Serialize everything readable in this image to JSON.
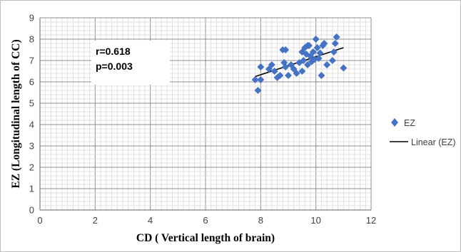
{
  "chart_data": {
    "type": "scatter",
    "xlabel": "CD ( Vertical length of brain)",
    "ylabel": "EZ (Longitudinal length of CC)",
    "xlim": [
      0,
      12
    ],
    "ylim": [
      0,
      9
    ],
    "x_ticks": [
      "0",
      "2",
      "4",
      "6",
      "8",
      "10",
      "12"
    ],
    "y_ticks": [
      "0",
      "1",
      "2",
      "3",
      "4",
      "5",
      "6",
      "7",
      "8",
      "9"
    ],
    "grid": true,
    "legend_position": "right",
    "annotation": {
      "line1": "r=0.618",
      "line2": "p=0.003"
    },
    "series": [
      {
        "name": "EZ",
        "marker": "diamond",
        "color": "#4472c4",
        "points": [
          [
            7.8,
            6.1
          ],
          [
            7.9,
            5.6
          ],
          [
            8.0,
            6.7
          ],
          [
            8.0,
            6.1
          ],
          [
            8.3,
            6.6
          ],
          [
            8.4,
            6.8
          ],
          [
            8.5,
            6.5
          ],
          [
            8.6,
            6.2
          ],
          [
            8.7,
            6.3
          ],
          [
            8.8,
            7.5
          ],
          [
            8.85,
            6.9
          ],
          [
            8.9,
            6.7
          ],
          [
            8.9,
            7.5
          ],
          [
            9.0,
            6.3
          ],
          [
            9.1,
            6.8
          ],
          [
            9.2,
            6.6
          ],
          [
            9.3,
            6.4
          ],
          [
            9.4,
            6.9
          ],
          [
            9.5,
            6.5
          ],
          [
            9.5,
            7.4
          ],
          [
            9.55,
            7.0
          ],
          [
            9.6,
            7.6
          ],
          [
            9.65,
            7.3
          ],
          [
            9.7,
            6.8
          ],
          [
            9.7,
            7.7
          ],
          [
            9.75,
            7.7
          ],
          [
            9.8,
            7.2
          ],
          [
            9.85,
            6.95
          ],
          [
            9.9,
            7.4
          ],
          [
            9.95,
            7.05
          ],
          [
            10.0,
            8.0
          ],
          [
            10.05,
            7.6
          ],
          [
            10.1,
            7.1
          ],
          [
            10.15,
            7.35
          ],
          [
            10.2,
            6.3
          ],
          [
            10.25,
            7.7
          ],
          [
            10.3,
            7.8
          ],
          [
            10.4,
            6.8
          ],
          [
            10.6,
            7.0
          ],
          [
            10.65,
            7.4
          ],
          [
            10.7,
            7.8
          ],
          [
            10.75,
            8.1
          ],
          [
            11.0,
            6.65
          ]
        ]
      }
    ],
    "trendline": {
      "name": "Linear (EZ)",
      "color": "#000000",
      "x": [
        7.8,
        11.0
      ],
      "y": [
        6.25,
        7.6
      ]
    }
  }
}
